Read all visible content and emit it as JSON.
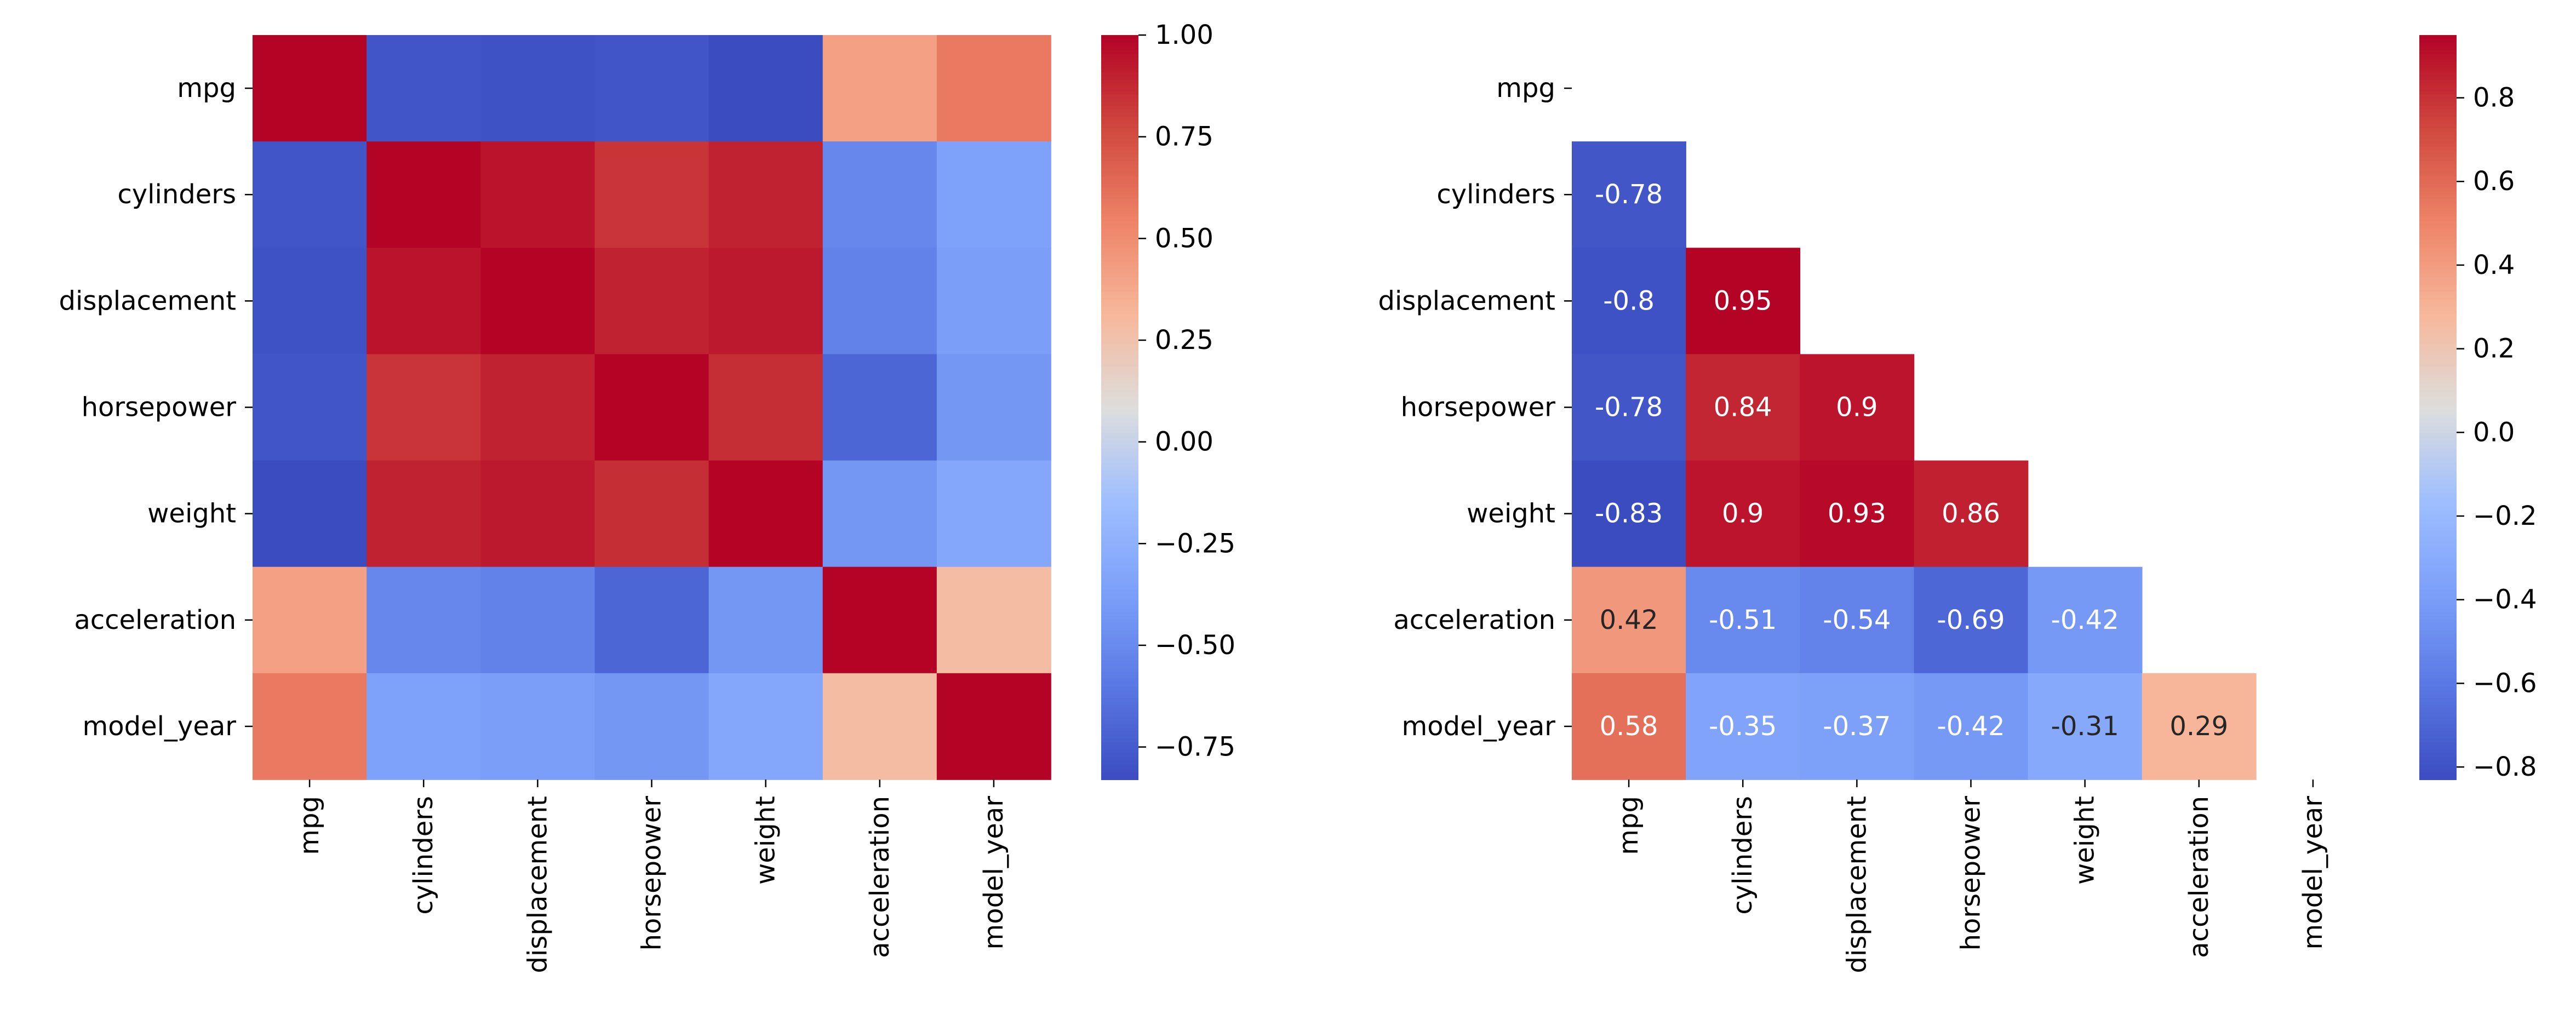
{
  "chart_data": [
    {
      "type": "heatmap",
      "title": "",
      "xlabel": "",
      "ylabel": "",
      "row_labels": [
        "mpg",
        "cylinders",
        "displacement",
        "horsepower",
        "weight",
        "acceleration",
        "model_year"
      ],
      "col_labels": [
        "mpg",
        "cylinders",
        "displacement",
        "horsepower",
        "weight",
        "acceleration",
        "model_year"
      ],
      "values": [
        [
          1.0,
          -0.78,
          -0.8,
          -0.78,
          -0.83,
          0.42,
          0.58
        ],
        [
          -0.78,
          1.0,
          0.95,
          0.84,
          0.9,
          -0.51,
          -0.35
        ],
        [
          -0.8,
          0.95,
          1.0,
          0.9,
          0.93,
          -0.54,
          -0.37
        ],
        [
          -0.78,
          0.84,
          0.9,
          1.0,
          0.86,
          -0.69,
          -0.42
        ],
        [
          -0.83,
          0.9,
          0.93,
          0.86,
          1.0,
          -0.42,
          -0.31
        ],
        [
          0.42,
          -0.51,
          -0.54,
          -0.69,
          -0.42,
          1.0,
          0.29
        ],
        [
          0.58,
          -0.35,
          -0.37,
          -0.42,
          -0.31,
          0.29,
          1.0
        ]
      ],
      "mask": "none",
      "annotated": false,
      "colormap": "coolwarm",
      "vmin": -0.83,
      "vmax": 1.0,
      "colorbar_ticks": [
        "1.00",
        "0.75",
        "0.50",
        "0.25",
        "0.00",
        "−0.25",
        "−0.50",
        "−0.75"
      ]
    },
    {
      "type": "heatmap",
      "title": "",
      "xlabel": "",
      "ylabel": "",
      "row_labels": [
        "mpg",
        "cylinders",
        "displacement",
        "horsepower",
        "weight",
        "acceleration",
        "model_year"
      ],
      "col_labels": [
        "mpg",
        "cylinders",
        "displacement",
        "horsepower",
        "weight",
        "acceleration",
        "model_year"
      ],
      "values": [
        [
          1.0,
          -0.78,
          -0.8,
          -0.78,
          -0.83,
          0.42,
          0.58
        ],
        [
          -0.78,
          1.0,
          0.95,
          0.84,
          0.9,
          -0.51,
          -0.35
        ],
        [
          -0.8,
          0.95,
          1.0,
          0.9,
          0.93,
          -0.54,
          -0.37
        ],
        [
          -0.78,
          0.84,
          0.9,
          1.0,
          0.86,
          -0.69,
          -0.42
        ],
        [
          -0.83,
          0.9,
          0.93,
          0.86,
          1.0,
          -0.42,
          -0.31
        ],
        [
          0.42,
          -0.51,
          -0.54,
          -0.69,
          -0.42,
          1.0,
          0.29
        ],
        [
          0.58,
          -0.35,
          -0.37,
          -0.42,
          -0.31,
          0.29,
          1.0
        ]
      ],
      "annotations": [
        [
          "",
          "",
          "",
          "",
          "",
          "",
          ""
        ],
        [
          "-0.78",
          "",
          "",
          "",
          "",
          "",
          ""
        ],
        [
          "-0.8",
          "0.95",
          "",
          "",
          "",
          "",
          ""
        ],
        [
          "-0.78",
          "0.84",
          "0.9",
          "",
          "",
          "",
          ""
        ],
        [
          "-0.83",
          "0.9",
          "0.93",
          "0.86",
          "",
          "",
          ""
        ],
        [
          "0.42",
          "-0.51",
          "-0.54",
          "-0.69",
          "-0.42",
          "",
          ""
        ],
        [
          "0.58",
          "-0.35",
          "-0.37",
          "-0.42",
          "-0.31",
          "0.29",
          ""
        ]
      ],
      "mask": "upper-triangle-including-diagonal",
      "annotated": true,
      "colormap": "coolwarm",
      "vmin": -0.83,
      "vmax": 0.95,
      "colorbar_ticks": [
        "0.8",
        "0.6",
        "0.4",
        "0.2",
        "0.0",
        "−0.2",
        "−0.4",
        "−0.6",
        "−0.8"
      ]
    }
  ],
  "colors": {
    "coolwarm_low": "#3b4cc0",
    "coolwarm_mid": "#dddddd",
    "coolwarm_high": "#b40426",
    "text_dark": "#262626",
    "text_light": "#ffffff",
    "tick": "#000000"
  }
}
